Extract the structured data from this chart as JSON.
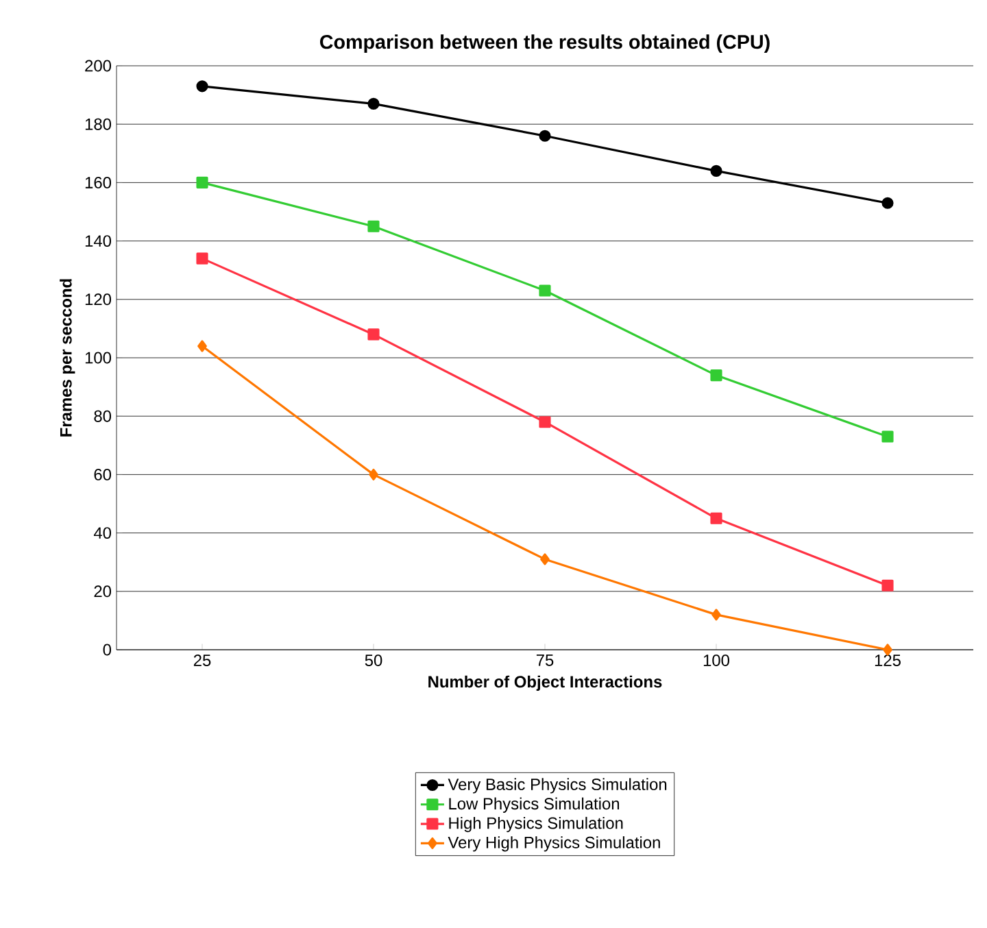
{
  "chart_data": {
    "type": "line",
    "title": "Comparison between the results obtained (CPU)",
    "xlabel": "Number of Object Interactions",
    "ylabel": "Frames per seccond",
    "categories": [
      "25",
      "50",
      "75",
      "100",
      "125"
    ],
    "ylim": [
      0,
      200
    ],
    "yticks": [
      0,
      20,
      40,
      60,
      80,
      100,
      120,
      140,
      160,
      180,
      200
    ],
    "grid": "y",
    "legend": "bottom",
    "line_style": "solid",
    "series": [
      {
        "name": "Very Basic Physics Simulation",
        "color": "#000000",
        "marker": "circle",
        "values": [
          193,
          187,
          176,
          164,
          153
        ]
      },
      {
        "name": "Low Physics Simulation",
        "color": "#33cc33",
        "marker": "square",
        "values": [
          160,
          145,
          123,
          94,
          73
        ]
      },
      {
        "name": "High Physics Simulation",
        "color": "#ff3344",
        "marker": "square",
        "values": [
          134,
          108,
          78,
          45,
          22
        ]
      },
      {
        "name": "Very High Physics Simulation",
        "color": "#ff7700",
        "marker": "diamond",
        "values": [
          104,
          60,
          31,
          12,
          0
        ]
      }
    ]
  }
}
